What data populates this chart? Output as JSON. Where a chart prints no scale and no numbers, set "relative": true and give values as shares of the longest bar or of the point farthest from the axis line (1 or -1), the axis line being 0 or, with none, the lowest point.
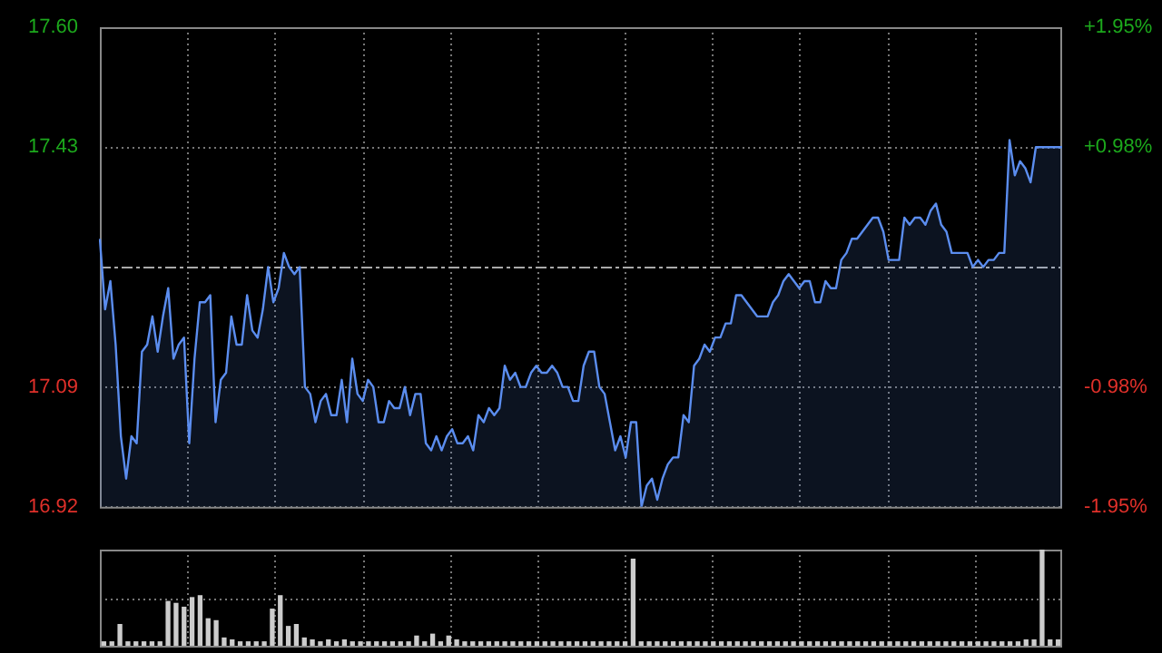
{
  "chart_data": [
    {
      "type": "area",
      "color": "#5b8def",
      "categories": [
        null,
        null,
        null,
        null,
        null,
        null,
        null,
        null,
        null,
        null,
        null,
        null,
        null,
        null,
        null,
        null,
        null,
        null,
        null,
        null,
        null,
        null,
        null,
        null,
        null,
        null,
        null,
        null,
        null,
        null,
        null,
        null,
        null,
        null,
        null,
        null,
        null,
        null,
        null,
        null,
        null,
        null,
        null,
        null,
        null,
        null,
        null,
        null,
        null,
        null,
        null,
        null,
        null,
        null,
        null,
        null,
        null,
        null,
        null,
        null,
        null,
        null,
        null,
        null,
        null,
        null,
        null,
        null,
        null,
        null,
        null,
        null,
        null,
        null,
        null,
        null,
        null,
        null,
        null,
        null,
        null,
        null,
        null,
        null,
        null,
        null,
        null,
        null,
        null,
        null,
        null,
        null,
        null,
        null,
        null,
        null,
        null,
        null,
        null,
        null,
        null,
        null,
        null,
        null,
        null,
        null,
        null,
        null,
        null,
        null,
        null,
        null,
        null,
        null,
        null,
        null,
        null,
        null,
        null,
        null,
        null,
        null,
        null,
        null,
        null,
        null,
        null,
        null,
        null,
        null,
        null,
        null,
        null,
        null,
        null,
        null,
        null,
        null,
        null,
        null,
        null,
        null,
        null,
        null,
        null,
        null,
        null,
        null,
        null,
        null,
        null,
        null,
        null,
        null,
        null,
        null,
        null,
        null,
        null,
        null,
        null,
        null,
        null,
        null,
        null,
        null,
        null,
        null,
        null,
        null,
        null,
        null,
        null,
        null,
        null,
        null,
        null,
        null,
        null,
        null,
        null,
        null,
        null,
        null
      ],
      "values": [
        17.3,
        17.2,
        17.24,
        17.15,
        17.02,
        16.96,
        17.02,
        17.01,
        17.14,
        17.15,
        17.19,
        17.14,
        17.19,
        17.23,
        17.13,
        17.15,
        17.16,
        17.01,
        17.13,
        17.21,
        17.21,
        17.22,
        17.04,
        17.1,
        17.11,
        17.19,
        17.15,
        17.15,
        17.22,
        17.17,
        17.16,
        17.2,
        17.26,
        17.21,
        17.23,
        17.28,
        17.26,
        17.25,
        17.26,
        17.09,
        17.08,
        17.04,
        17.07,
        17.08,
        17.05,
        17.05,
        17.1,
        17.04,
        17.13,
        17.08,
        17.07,
        17.1,
        17.09,
        17.04,
        17.04,
        17.07,
        17.06,
        17.06,
        17.09,
        17.05,
        17.08,
        17.08,
        17.01,
        17.0,
        17.02,
        17.0,
        17.02,
        17.03,
        17.01,
        17.01,
        17.02,
        17.0,
        17.05,
        17.04,
        17.06,
        17.05,
        17.06,
        17.12,
        17.1,
        17.11,
        17.09,
        17.09,
        17.11,
        17.12,
        17.11,
        17.11,
        17.12,
        17.11,
        17.09,
        17.09,
        17.07,
        17.07,
        17.12,
        17.14,
        17.14,
        17.09,
        17.08,
        17.04,
        17.0,
        17.02,
        16.99,
        17.04,
        17.04,
        16.92,
        16.95,
        16.96,
        16.93,
        16.96,
        16.98,
        16.99,
        16.99,
        17.05,
        17.04,
        17.12,
        17.13,
        17.15,
        17.14,
        17.16,
        17.16,
        17.18,
        17.18,
        17.22,
        17.22,
        17.21,
        17.2,
        17.19,
        17.19,
        17.19,
        17.21,
        17.22,
        17.24,
        17.25,
        17.24,
        17.23,
        17.24,
        17.24,
        17.21,
        17.21,
        17.24,
        17.23,
        17.23,
        17.27,
        17.28,
        17.3,
        17.3,
        17.31,
        17.32,
        17.33,
        17.33,
        17.31,
        17.27,
        17.27,
        17.27,
        17.33,
        17.32,
        17.33,
        17.33,
        17.32,
        17.34,
        17.35,
        17.32,
        17.31,
        17.28,
        17.28,
        17.28,
        17.28,
        17.26,
        17.27,
        17.26,
        17.27,
        17.27,
        17.28,
        17.28,
        17.44,
        17.39,
        17.41,
        17.4,
        17.38,
        17.43,
        17.43,
        17.43,
        17.43,
        17.43,
        17.43
      ],
      "ylim": [
        16.92,
        17.6
      ],
      "yticks": [
        16.92,
        17.09,
        17.43,
        {
          "value": 17.6,
          "label": "17.60"
        }
      ],
      "y2lim": [
        -1.95,
        1.95
      ],
      "y2ticks": [
        {
          "value": -1.95,
          "label": "-1.95%"
        },
        {
          "value": -0.98,
          "label": "-0.98%"
        },
        {
          "value": 0.98,
          "label": "+0.98%"
        },
        {
          "value": 1.95,
          "label": "+1.95%"
        }
      ],
      "ref_lines": [
        {
          "axis": "y",
          "value": 17.26,
          "line_style": "dashed"
        }
      ],
      "grid": true,
      "legend": false
    },
    {
      "type": "bar",
      "relative": true,
      "color": "#cccccc",
      "grid": true,
      "legend": false,
      "categories": [
        null,
        null,
        null,
        null,
        null,
        null,
        null,
        null,
        null,
        null,
        null,
        null,
        null,
        null,
        null,
        null,
        null,
        null,
        null,
        null,
        null,
        null,
        null,
        null,
        null,
        null,
        null,
        null,
        null,
        null,
        null,
        null,
        null,
        null,
        null,
        null,
        null,
        null,
        null,
        null,
        null,
        null,
        null,
        null,
        null,
        null,
        null,
        null,
        null,
        null,
        null,
        null,
        null,
        null,
        null,
        null,
        null,
        null,
        null,
        null,
        null,
        null,
        null,
        null,
        null,
        null,
        null,
        null,
        null,
        null,
        null,
        null,
        null,
        null,
        null,
        null,
        null,
        null,
        null,
        null,
        null,
        null,
        null,
        null,
        null,
        null,
        null,
        null,
        null,
        null,
        null,
        null,
        null,
        null,
        null,
        null,
        null,
        null,
        null,
        null,
        null,
        null,
        null,
        null,
        null,
        null,
        null,
        null,
        null,
        null,
        null,
        null,
        null,
        null,
        null,
        null,
        null,
        null,
        null,
        null
      ],
      "values": [
        0.04,
        0.04,
        0.22,
        0.04,
        0.04,
        0.04,
        0.04,
        0.04,
        0.46,
        0.44,
        0.4,
        0.5,
        0.52,
        0.28,
        0.26,
        0.08,
        0.06,
        0.04,
        0.04,
        0.04,
        0.04,
        0.38,
        0.52,
        0.2,
        0.22,
        0.08,
        0.06,
        0.04,
        0.06,
        0.04,
        0.06,
        0.04,
        0.04,
        0.04,
        0.04,
        0.04,
        0.04,
        0.04,
        0.04,
        0.1,
        0.04,
        0.12,
        0.04,
        0.1,
        0.06,
        0.04,
        0.04,
        0.04,
        0.04,
        0.04,
        0.04,
        0.04,
        0.04,
        0.04,
        0.04,
        0.04,
        0.04,
        0.04,
        0.04,
        0.04,
        0.04,
        0.04,
        0.04,
        0.04,
        0.04,
        0.04,
        0.9,
        0.04,
        0.04,
        0.04,
        0.04,
        0.04,
        0.04,
        0.04,
        0.04,
        0.04,
        0.04,
        0.04,
        0.04,
        0.04,
        0.04,
        0.04,
        0.04,
        0.04,
        0.04,
        0.04,
        0.04,
        0.04,
        0.04,
        0.04,
        0.04,
        0.04,
        0.04,
        0.04,
        0.04,
        0.04,
        0.04,
        0.04,
        0.04,
        0.04,
        0.04,
        0.04,
        0.04,
        0.04,
        0.04,
        0.04,
        0.04,
        0.04,
        0.04,
        0.04,
        0.04,
        0.04,
        0.04,
        0.04,
        0.04,
        0.06,
        0.06,
        1.0,
        0.06,
        0.06
      ]
    }
  ]
}
